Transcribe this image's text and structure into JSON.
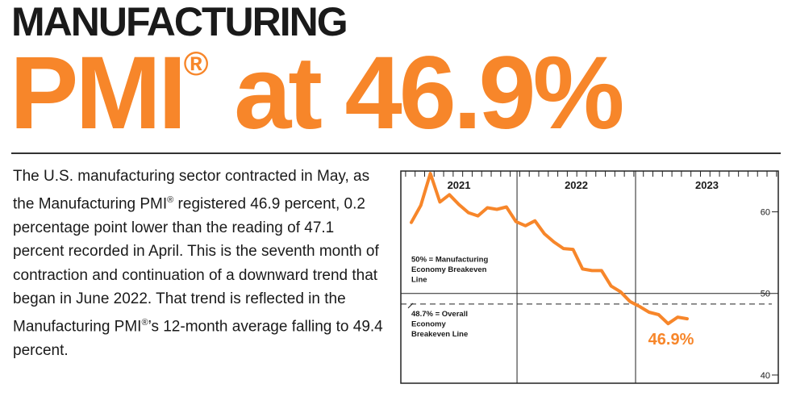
{
  "header": {
    "line1": "MANUFACTURING",
    "line2_prefix": "PMI",
    "line2_reg": "®",
    "line2_suffix": " at 46.9%"
  },
  "body": {
    "paragraph": [
      {
        "t": "The U.S. manufacturing sector contracted in May, as the Manufacturing PMI"
      },
      {
        "t": "®",
        "sup": true
      },
      {
        "t": " registered 46.9 percent, 0.2 percentage point lower than the reading of 47.1 percent recorded in April. This is the seventh month of contraction and continuation of a downward trend that began in June 2022. That trend is reflected in the Manufacturing PMI"
      },
      {
        "t": "®",
        "sup": true
      },
      {
        "t": "’s 12-month average falling to 49.4 percent."
      }
    ]
  },
  "colors": {
    "accent": "#f7862a",
    "text": "#1a1a1a"
  },
  "chart_data": {
    "type": "line",
    "year_labels": [
      "2021",
      "2022",
      "2023"
    ],
    "y_ticks": [
      60,
      50,
      40
    ],
    "ylim": [
      39,
      65
    ],
    "series": [
      {
        "values": [
          58.7,
          60.8,
          64.7,
          61.2,
          62.1,
          60.9,
          59.9,
          59.5,
          60.5,
          60.3,
          60.6,
          58.8,
          58.3,
          58.9,
          57.3,
          56.3,
          55.5,
          55.4,
          53.0,
          52.8,
          52.8,
          50.9,
          50.2,
          49.0,
          48.4,
          47.7,
          47.4,
          46.3,
          47.1,
          46.9
        ],
        "last_label": "46.9%"
      }
    ],
    "reference_lines": [
      {
        "value": 50,
        "style": "solid",
        "label_lines": [
          "50% = Manufacturing",
          "Economy Breakeven",
          "Line"
        ]
      },
      {
        "value": 48.7,
        "style": "dashed",
        "label_lines": [
          "48.7% = Overall",
          "Economy",
          "Breakeven Line"
        ]
      }
    ]
  }
}
